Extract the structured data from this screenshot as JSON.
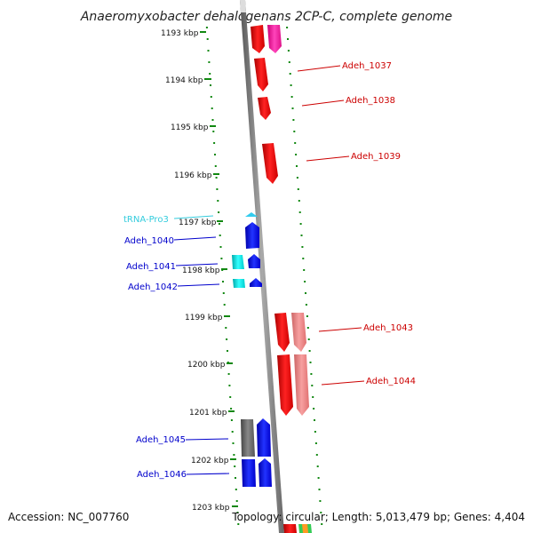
{
  "title": "Anaeromyxobacter dehalogenans 2CP-C, complete genome",
  "footer": {
    "accession": "Accession: NC_007760",
    "topology": "Topology: circular; Length: 5,013,479 bp; Genes: 4,404"
  },
  "ticks": [
    {
      "label": "1193 kbp"
    },
    {
      "label": "1194 kbp"
    },
    {
      "label": "1195 kbp"
    },
    {
      "label": "1196 kbp"
    },
    {
      "label": "1197 kbp"
    },
    {
      "label": "1198 kbp"
    },
    {
      "label": "1199 kbp"
    },
    {
      "label": "1200 kbp"
    },
    {
      "label": "1201 kbp"
    },
    {
      "label": "1202 kbp"
    },
    {
      "label": "1203 kbp"
    }
  ],
  "genes_right": [
    {
      "label": "Adeh_1037",
      "color": "#cc0000"
    },
    {
      "label": "Adeh_1038",
      "color": "#cc0000"
    },
    {
      "label": "Adeh_1039",
      "color": "#cc0000"
    },
    {
      "label": "Adeh_1043",
      "color": "#cc0000"
    },
    {
      "label": "Adeh_1044",
      "color": "#cc0000"
    }
  ],
  "genes_left": [
    {
      "label": "tRNA-Pro3",
      "color": "#33ccdd"
    },
    {
      "label": "Adeh_1040",
      "color": "#0000cc"
    },
    {
      "label": "Adeh_1041",
      "color": "#0000cc"
    },
    {
      "label": "Adeh_1042",
      "color": "#0000cc"
    },
    {
      "label": "Adeh_1045",
      "color": "#0000cc"
    },
    {
      "label": "Adeh_1046",
      "color": "#0000cc"
    }
  ],
  "colors": {
    "forward": "#ff0000",
    "forward_light": "#f08080",
    "forward_magenta": "#ff2299",
    "reverse": "#0000ff",
    "reverse_cyan": "#00dddd",
    "reverse_gray": "#666666",
    "trna": "#33ccee",
    "dots": "#118811",
    "backbone": "#808080"
  }
}
